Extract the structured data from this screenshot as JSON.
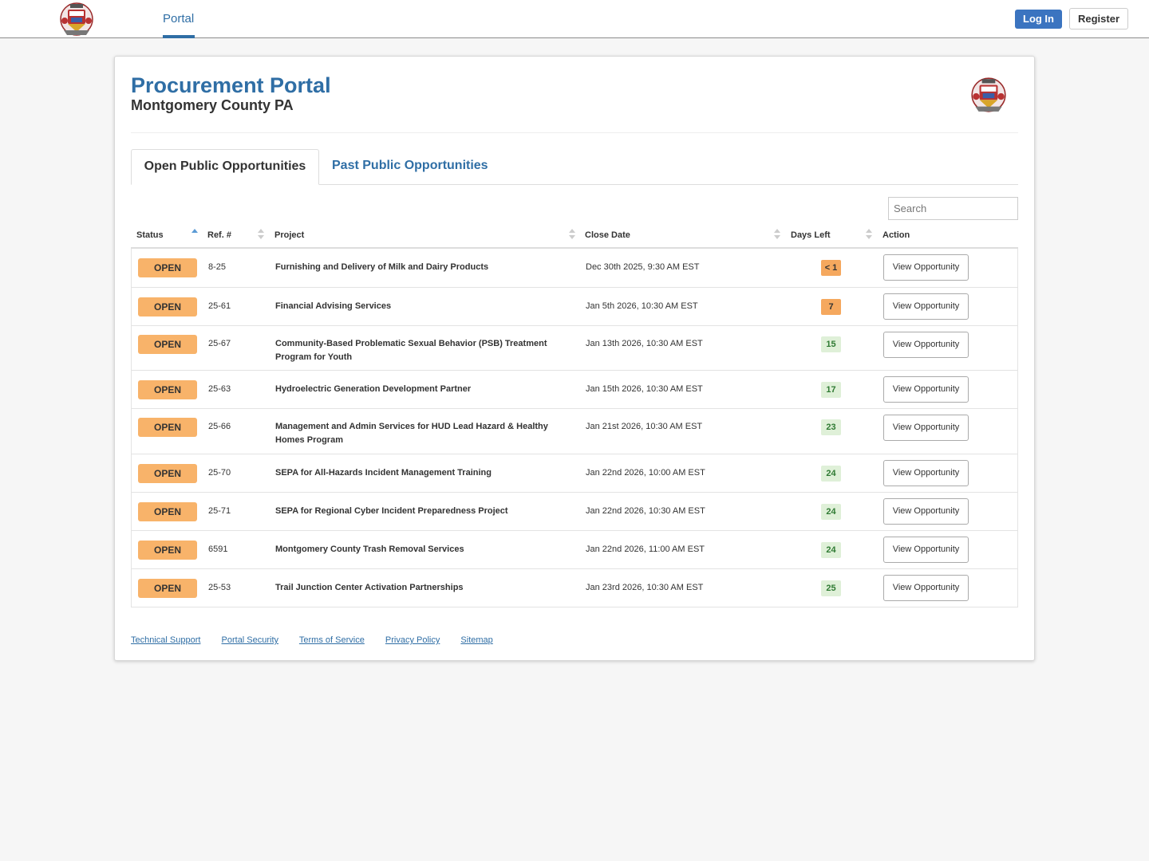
{
  "nav": {
    "portal_label": "Portal",
    "login_label": "Log In",
    "register_label": "Register",
    "logo_icon": "county-seal-icon"
  },
  "header": {
    "title": "Procurement Portal",
    "subtitle": "Montgomery County PA"
  },
  "tabs": {
    "open_label": "Open Public Opportunities",
    "past_label": "Past Public Opportunities"
  },
  "search": {
    "placeholder": "Search",
    "value": ""
  },
  "table": {
    "columns": {
      "status": "Status",
      "ref": "Ref. #",
      "project": "Project",
      "close_date": "Close Date",
      "days_left": "Days Left",
      "action": "Action"
    },
    "sorted_column": "status",
    "rows": [
      {
        "status": "OPEN",
        "ref": "8-25",
        "project": "Furnishing and Delivery of Milk and Dairy Products",
        "close_date": "Dec 30th 2025, 9:30 AM EST",
        "days_left": "< 1",
        "days_level": "warn",
        "action": "View Opportunity"
      },
      {
        "status": "OPEN",
        "ref": "25-61",
        "project": "Financial Advising Services",
        "close_date": "Jan 5th 2026, 10:30 AM EST",
        "days_left": "7",
        "days_level": "warn",
        "action": "View Opportunity"
      },
      {
        "status": "OPEN",
        "ref": "25-67",
        "project": "Community-Based Problematic Sexual Behavior (PSB) Treatment Program for Youth",
        "close_date": "Jan 13th 2026, 10:30 AM EST",
        "days_left": "15",
        "days_level": "ok",
        "action": "View Opportunity"
      },
      {
        "status": "OPEN",
        "ref": "25-63",
        "project": "Hydroelectric Generation Development Partner",
        "close_date": "Jan 15th 2026, 10:30 AM EST",
        "days_left": "17",
        "days_level": "ok",
        "action": "View Opportunity"
      },
      {
        "status": "OPEN",
        "ref": "25-66",
        "project": "Management and Admin Services for HUD Lead Hazard & Healthy Homes Program",
        "close_date": "Jan 21st 2026, 10:30 AM EST",
        "days_left": "23",
        "days_level": "ok",
        "action": "View Opportunity"
      },
      {
        "status": "OPEN",
        "ref": "25-70",
        "project": "SEPA for All-Hazards Incident Management Training",
        "close_date": "Jan 22nd 2026, 10:00 AM EST",
        "days_left": "24",
        "days_level": "ok",
        "action": "View Opportunity"
      },
      {
        "status": "OPEN",
        "ref": "25-71",
        "project": "SEPA for Regional Cyber Incident Preparedness Project",
        "close_date": "Jan 22nd 2026, 10:30 AM EST",
        "days_left": "24",
        "days_level": "ok",
        "action": "View Opportunity"
      },
      {
        "status": "OPEN",
        "ref": "6591",
        "project": "Montgomery County Trash Removal Services",
        "close_date": "Jan 22nd 2026, 11:00 AM EST",
        "days_left": "24",
        "days_level": "ok",
        "action": "View Opportunity"
      },
      {
        "status": "OPEN",
        "ref": "25-53",
        "project": "Trail Junction Center Activation Partnerships",
        "close_date": "Jan 23rd 2026, 10:30 AM EST",
        "days_left": "25",
        "days_level": "ok",
        "action": "View Opportunity"
      }
    ]
  },
  "footer": {
    "links": [
      "Technical Support",
      "Portal Security",
      "Terms of Service",
      "Privacy Policy",
      "Sitemap"
    ]
  },
  "colors": {
    "brand_blue": "#2f6ea5",
    "login_blue": "#3b74c0",
    "open_badge": "#f8b36a",
    "days_warn": "#f5a85e",
    "days_ok_bg": "#dff0d8",
    "days_ok_text": "#2f7a33"
  }
}
